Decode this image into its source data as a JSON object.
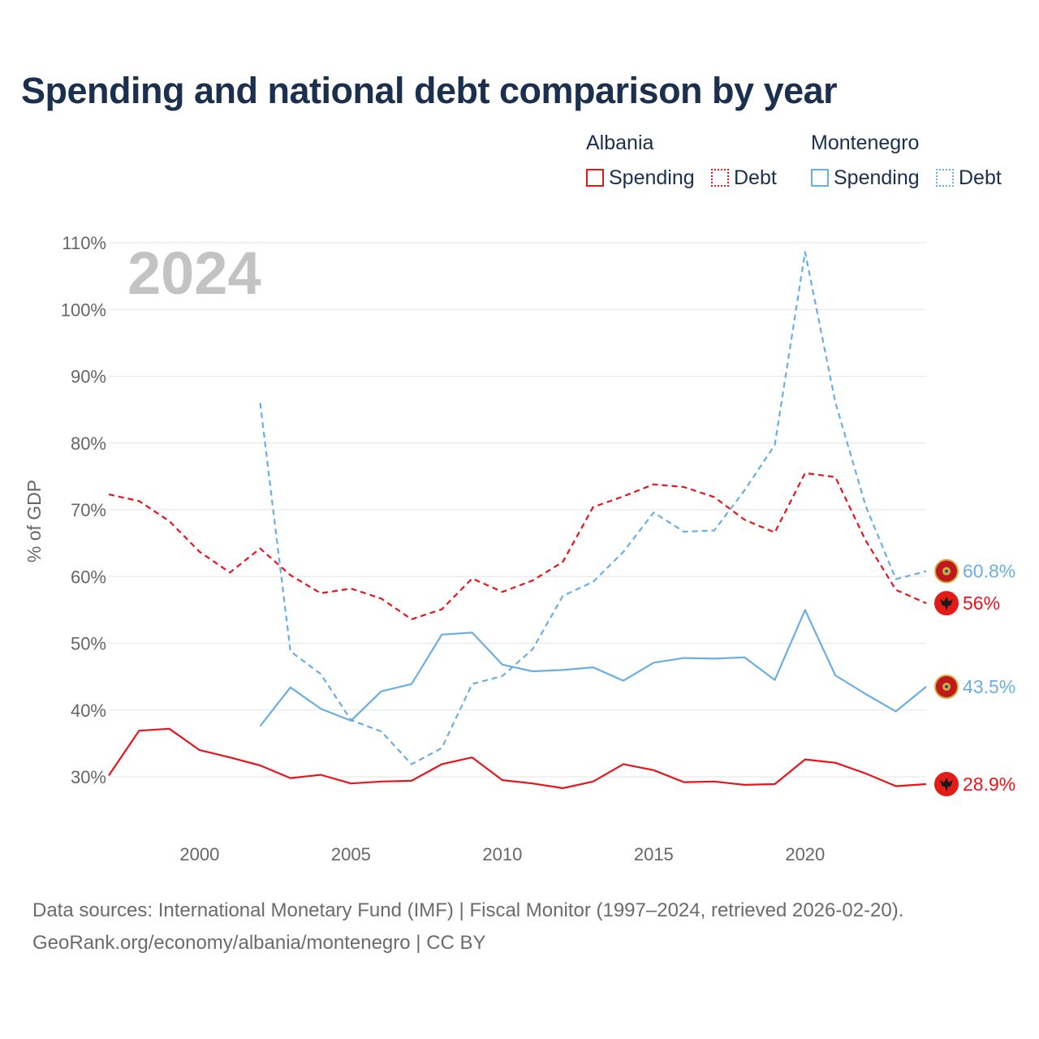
{
  "title": "Spending and national debt comparison by year",
  "legend": {
    "groups": [
      {
        "name": "Albania",
        "spending_label": "Spending",
        "debt_label": "Debt",
        "color": "#e8141c"
      },
      {
        "name": "Montenegro",
        "spending_label": "Spending",
        "debt_label": "Debt",
        "color": "#6aaee6"
      }
    ]
  },
  "footer": {
    "source": "Data sources: International Monetary Fund (IMF) | Fiscal Monitor (1997–2024, retrieved 2026-02-20).",
    "credit": "GeoRank.org/economy/albania/montenegro | CC BY"
  },
  "chart_data": {
    "type": "line",
    "ylabel": "% of GDP",
    "xlabel": "",
    "year_label": "2024",
    "xlim": [
      1997,
      2024
    ],
    "ylim": [
      30,
      110
    ],
    "y_ticks": [
      30,
      40,
      50,
      60,
      70,
      80,
      90,
      100,
      110
    ],
    "y_tick_labels": [
      "30%",
      "40%",
      "50%",
      "60%",
      "70%",
      "80%",
      "90%",
      "100%",
      "110%"
    ],
    "x_ticks": [
      2000,
      2005,
      2010,
      2015,
      2020
    ],
    "x_tick_labels": [
      "2000",
      "2005",
      "2010",
      "2015",
      "2020"
    ],
    "grid": true,
    "series": [
      {
        "name": "Albania Debt",
        "country": "Albania",
        "color": "#e8141c",
        "dash": "dashed",
        "end_label": "56%",
        "x": [
          1997,
          1998,
          1999,
          2000,
          2001,
          2002,
          2003,
          2004,
          2005,
          2006,
          2007,
          2008,
          2009,
          2010,
          2011,
          2012,
          2013,
          2014,
          2015,
          2016,
          2017,
          2018,
          2019,
          2020,
          2021,
          2022,
          2023,
          2024
        ],
        "values": [
          72.3,
          71.3,
          68.3,
          63.7,
          60.6,
          64.2,
          60.2,
          57.5,
          58.2,
          56.7,
          53.6,
          55.1,
          59.7,
          57.7,
          59.4,
          62.2,
          70.4,
          72.0,
          73.8,
          73.4,
          71.9,
          68.5,
          66.6,
          75.5,
          74.9,
          65.4,
          58.0,
          56.0
        ]
      },
      {
        "name": "Albania Spending",
        "country": "Albania",
        "color": "#e8141c",
        "dash": "solid",
        "end_label": "28.9%",
        "x": [
          1997,
          1998,
          1999,
          2000,
          2001,
          2002,
          2003,
          2004,
          2005,
          2006,
          2007,
          2008,
          2009,
          2010,
          2011,
          2012,
          2013,
          2014,
          2015,
          2016,
          2017,
          2018,
          2019,
          2020,
          2021,
          2022,
          2023,
          2024
        ],
        "values": [
          30.2,
          36.9,
          37.2,
          34.0,
          32.9,
          31.7,
          29.8,
          30.3,
          29.0,
          29.3,
          29.4,
          31.9,
          32.9,
          29.5,
          29.0,
          28.3,
          29.3,
          31.9,
          31.0,
          29.2,
          29.3,
          28.8,
          28.9,
          32.6,
          32.1,
          30.5,
          28.6,
          28.9
        ]
      },
      {
        "name": "Montenegro Debt",
        "country": "Montenegro",
        "color": "#6aaee6",
        "dash": "dashed",
        "end_label": "60.8%",
        "x": [
          2002,
          2003,
          2004,
          2005,
          2006,
          2007,
          2008,
          2009,
          2010,
          2011,
          2012,
          2013,
          2014,
          2015,
          2016,
          2017,
          2018,
          2019,
          2020,
          2021,
          2022,
          2023,
          2024
        ],
        "values": [
          86.0,
          48.8,
          45.4,
          38.5,
          36.8,
          31.9,
          34.3,
          43.9,
          45.1,
          49.1,
          57.1,
          59.2,
          63.7,
          69.6,
          66.7,
          66.9,
          72.9,
          79.7,
          108.6,
          86.1,
          70.6,
          59.6,
          60.8
        ]
      },
      {
        "name": "Montenegro Spending",
        "country": "Montenegro",
        "color": "#6aaee6",
        "dash": "solid",
        "end_label": "43.5%",
        "x": [
          2002,
          2003,
          2004,
          2005,
          2006,
          2007,
          2008,
          2009,
          2010,
          2011,
          2012,
          2013,
          2014,
          2015,
          2016,
          2017,
          2018,
          2019,
          2020,
          2021,
          2022,
          2023,
          2024
        ],
        "values": [
          37.6,
          43.4,
          40.2,
          38.4,
          42.8,
          43.9,
          51.3,
          51.6,
          46.8,
          45.8,
          46.0,
          46.4,
          44.4,
          47.1,
          47.8,
          47.7,
          47.9,
          44.5,
          55.0,
          45.2,
          42.4,
          39.8,
          43.5
        ]
      }
    ]
  }
}
